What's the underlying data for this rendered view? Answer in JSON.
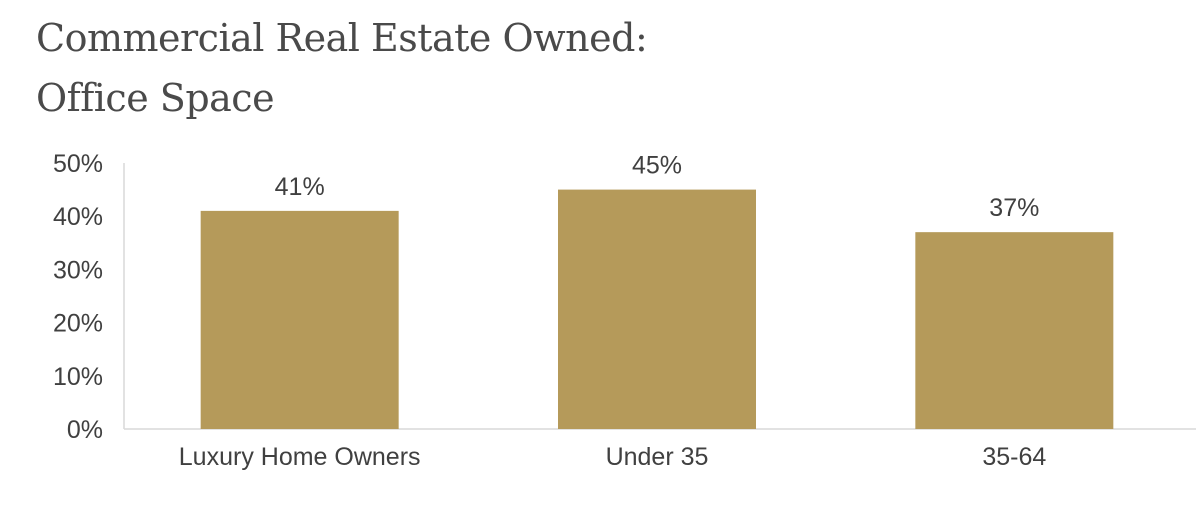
{
  "chart_data": {
    "type": "bar",
    "title_lines": [
      "Commercial Real Estate Owned:",
      "Office Space"
    ],
    "categories": [
      "Luxury Home Owners",
      "Under 35",
      "35-64"
    ],
    "values": [
      41,
      45,
      37
    ],
    "data_labels": [
      "41%",
      "45%",
      "37%"
    ],
    "y_ticks": [
      "0%",
      "10%",
      "20%",
      "30%",
      "40%",
      "50%"
    ],
    "ylim": [
      0,
      50
    ],
    "xlabel": "",
    "ylabel": "",
    "grid": false,
    "colors": {
      "bar": "#b59a5a",
      "axis": "#d9d9d9",
      "text": "#404040",
      "title": "#4a4a4a"
    }
  }
}
